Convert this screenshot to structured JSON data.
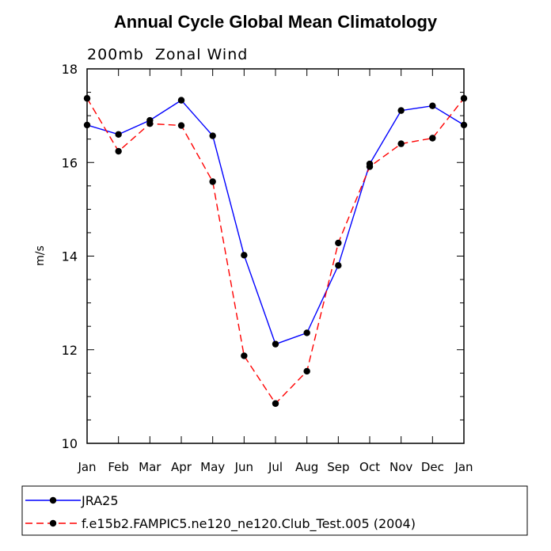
{
  "chart_data": {
    "type": "line",
    "title": "Annual Cycle Global Mean Climatology",
    "subtitle": "200mb  Zonal Wind",
    "xlabel": "",
    "ylabel": "m/s",
    "categories": [
      "Jan",
      "Feb",
      "Mar",
      "Apr",
      "May",
      "Jun",
      "Jul",
      "Aug",
      "Sep",
      "Oct",
      "Nov",
      "Dec",
      "Jan"
    ],
    "ylim": [
      10,
      18
    ],
    "yticks": [
      10,
      12,
      14,
      16,
      18
    ],
    "ytick_labels": [
      "10",
      "12",
      "14",
      "16",
      "18"
    ],
    "grid": false,
    "legend_position": "below-left",
    "series": [
      {
        "name": "JRA25",
        "color": "#0000ff",
        "dash": "solid",
        "marker": "circle",
        "values": [
          16.8,
          16.6,
          16.9,
          17.33,
          16.57,
          14.02,
          12.12,
          12.36,
          13.8,
          15.97,
          17.11,
          17.21,
          16.8
        ]
      },
      {
        "name": "f.e15b2.FAMPIC5.ne120_ne120.Club_Test.005 (2004)",
        "color": "#ff0000",
        "dash": "dashed",
        "marker": "circle",
        "values": [
          17.37,
          16.24,
          16.83,
          16.79,
          15.59,
          11.87,
          10.85,
          11.54,
          14.28,
          15.91,
          16.4,
          16.52,
          17.37
        ]
      }
    ]
  }
}
